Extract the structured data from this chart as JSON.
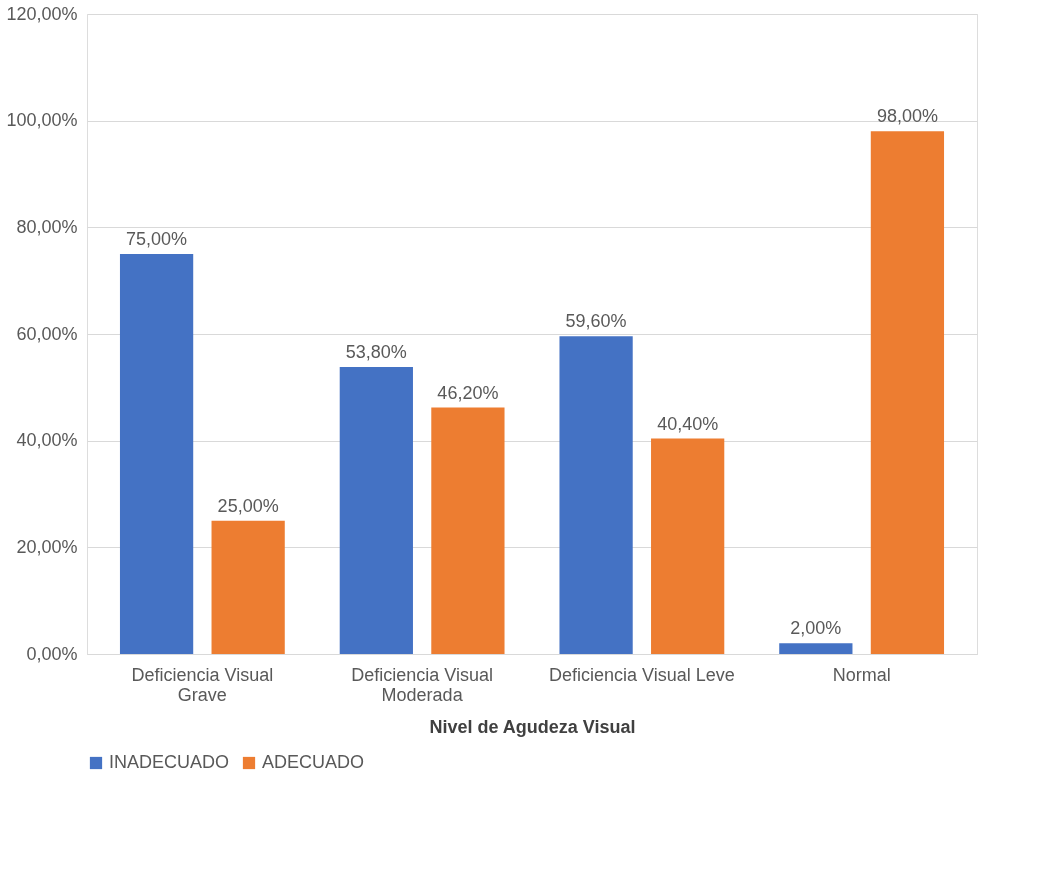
{
  "chart_data": {
    "type": "bar",
    "xlabel": "Nivel de Agudeza Visual",
    "categories": [
      "Deficiencia Visual Grave",
      "Deficiencia Visual Moderada",
      "Deficiencia Visual Leve",
      "Normal"
    ],
    "series": [
      {
        "name": "INADECUADO",
        "color": "#4472c4",
        "values": [
          75,
          53.8,
          59.6,
          2
        ],
        "value_labels": [
          "75,00%",
          "53,80%",
          "59,60%",
          "2,00%"
        ]
      },
      {
        "name": "ADECUADO",
        "color": "#ed7d31",
        "values": [
          25,
          46.2,
          40.4,
          98
        ],
        "value_labels": [
          "25,00%",
          "46,20%",
          "40,40%",
          "98,00%"
        ]
      }
    ],
    "ylim": [
      0,
      120
    ],
    "yticks": [
      {
        "value": 0,
        "label": "0,00%"
      },
      {
        "value": 20,
        "label": "20,00%"
      },
      {
        "value": 40,
        "label": "40,00%"
      },
      {
        "value": 60,
        "label": "60,00%"
      },
      {
        "value": 80,
        "label": "80,00%"
      },
      {
        "value": 100,
        "label": "100,00%"
      },
      {
        "value": 120,
        "label": "120,00%"
      }
    ],
    "grid": "y",
    "legend": "bottom"
  }
}
